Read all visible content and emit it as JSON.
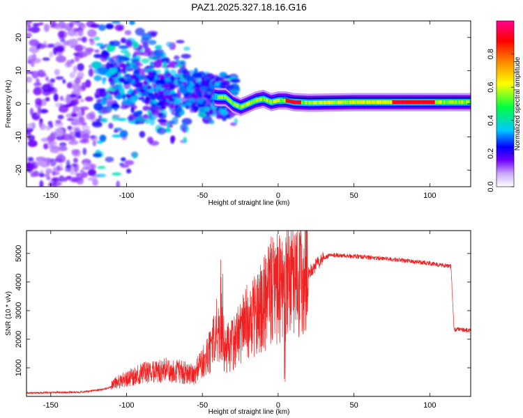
{
  "title": "PAZ1.2025.327.18.16.G16",
  "chart_data": [
    {
      "type": "heatmap",
      "name": "spectrogram",
      "xlabel": "Height of straight line (km)",
      "ylabel": "Frequency (Hz)",
      "xlim": [
        -166,
        127
      ],
      "ylim": [
        -25,
        25
      ],
      "x_ticks": [
        -150,
        -100,
        -50,
        0,
        50,
        100
      ],
      "x_tick_labels": [
        "-150",
        "-100",
        "-50",
        "0",
        "50",
        "100"
      ],
      "y_ticks": [
        -20,
        -10,
        0,
        10,
        20
      ],
      "y_tick_labels": [
        "-20",
        "-10",
        "0",
        "10",
        "20"
      ],
      "colorbar": {
        "label": "Normalized spectral amplitude",
        "range": [
          0,
          1
        ],
        "ticks": [
          0,
          0.2,
          0.4,
          0.6,
          0.8
        ],
        "tick_labels": [
          "0.0",
          "0.2",
          "0.4",
          "0.6",
          "0.8"
        ],
        "colors": [
          "#ffffff",
          "#c9a6ff",
          "#7000ff",
          "#0000ff",
          "#00c8ff",
          "#00ff40",
          "#ffff00",
          "#ff8000",
          "#ff0000",
          "#ff0090"
        ]
      },
      "trace_center_hz": [
        [
          -166,
          0
        ],
        [
          -110,
          7
        ],
        [
          -90,
          6
        ],
        [
          -70,
          4
        ],
        [
          -50,
          3
        ],
        [
          -40,
          2
        ],
        [
          -35,
          2
        ],
        [
          -30,
          0
        ],
        [
          -25,
          -1
        ],
        [
          -20,
          0
        ],
        [
          -15,
          1
        ],
        [
          -10,
          1.5
        ],
        [
          -5,
          0.5
        ],
        [
          0,
          1
        ],
        [
          5,
          1
        ],
        [
          10,
          0.5
        ],
        [
          20,
          0.3
        ],
        [
          50,
          0.5
        ],
        [
          100,
          0.5
        ],
        [
          127,
          0.5
        ]
      ],
      "peak_regions_km": [
        [
          5,
          15
        ],
        [
          75,
          103
        ]
      ]
    },
    {
      "type": "line",
      "name": "snr",
      "xlabel": "Height of straight line (km)",
      "ylabel": "SNR (10 * v/v)",
      "xlim": [
        -166,
        127
      ],
      "ylim": [
        0,
        5800
      ],
      "x_ticks": [
        -150,
        -100,
        -50,
        0,
        50,
        100
      ],
      "x_tick_labels": [
        "-150",
        "-100",
        "-50",
        "0",
        "50",
        "100"
      ],
      "y_ticks": [
        1000,
        2000,
        3000,
        4000,
        5000
      ],
      "y_tick_labels": [
        "1000",
        "2000",
        "3000",
        "4000",
        "5000"
      ],
      "color": "#ee2222",
      "envelope": [
        [
          -166,
          120
        ],
        [
          -130,
          150
        ],
        [
          -115,
          250
        ],
        [
          -100,
          500
        ],
        [
          -85,
          700
        ],
        [
          -75,
          750
        ],
        [
          -65,
          700
        ],
        [
          -55,
          600
        ],
        [
          -45,
          1500
        ],
        [
          -38,
          2500
        ],
        [
          -35,
          1500
        ],
        [
          -30,
          1800
        ],
        [
          -20,
          2500
        ],
        [
          -10,
          3000
        ],
        [
          -5,
          3500
        ],
        [
          0,
          3600
        ],
        [
          5,
          3800
        ],
        [
          10,
          4000
        ],
        [
          15,
          4100
        ],
        [
          20,
          4300
        ],
        [
          25,
          4600
        ],
        [
          30,
          4850
        ],
        [
          35,
          4950
        ],
        [
          50,
          4900
        ],
        [
          75,
          4800
        ],
        [
          100,
          4650
        ],
        [
          114,
          4550
        ],
        [
          116,
          2350
        ],
        [
          127,
          2300
        ]
      ]
    }
  ]
}
